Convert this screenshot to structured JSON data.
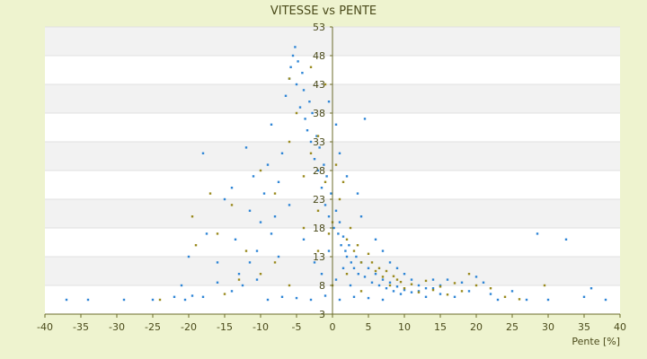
{
  "chart_data": {
    "type": "scatter",
    "title": "VITESSE vs PENTE",
    "xlabel": "Pente [%]",
    "ylabel": "",
    "xlim": [
      -40,
      40
    ],
    "ylim": [
      3,
      53
    ],
    "x_ticks": [
      -40,
      -35,
      -30,
      -25,
      -20,
      -15,
      -10,
      -5,
      0,
      5,
      10,
      15,
      20,
      25,
      30,
      35,
      40
    ],
    "y_ticks": [
      3,
      8,
      13,
      18,
      23,
      28,
      33,
      38,
      43,
      48,
      53
    ],
    "grid": true,
    "legend": "none",
    "colors": {
      "background": "#eef3cf",
      "plot_band_light": "#ffffff",
      "plot_band_dark": "#f2f2f2",
      "axis": "#6b6b2a",
      "series_blue": "#2f86d6",
      "series_olive": "#9a8a1e"
    },
    "series": [
      {
        "color": "#2f86d6",
        "points": [
          [
            -37,
            5.5
          ],
          [
            -34,
            5.5
          ],
          [
            -29,
            5.5
          ],
          [
            -25,
            5.5
          ],
          [
            -22,
            6
          ],
          [
            -20.5,
            5.5
          ],
          [
            -19.5,
            6.2
          ],
          [
            -18,
            31
          ],
          [
            -17.5,
            17
          ],
          [
            -16,
            12
          ],
          [
            -15,
            23
          ],
          [
            -14,
            25
          ],
          [
            -13.5,
            16
          ],
          [
            -13,
            10
          ],
          [
            -12.5,
            8
          ],
          [
            -12,
            32
          ],
          [
            -11.5,
            21
          ],
          [
            -11,
            27
          ],
          [
            -10.5,
            14
          ],
          [
            -10,
            19
          ],
          [
            -9.5,
            24
          ],
          [
            -9,
            29
          ],
          [
            -8.5,
            36
          ],
          [
            -8,
            20
          ],
          [
            -7.5,
            26
          ],
          [
            -7,
            31
          ],
          [
            -6.5,
            41
          ],
          [
            -6,
            44
          ],
          [
            -5.8,
            46
          ],
          [
            -5.5,
            48
          ],
          [
            -5.2,
            49.5
          ],
          [
            -5,
            43
          ],
          [
            -4.8,
            47
          ],
          [
            -4.5,
            39
          ],
          [
            -4.2,
            45
          ],
          [
            -4,
            42
          ],
          [
            -3.8,
            37
          ],
          [
            -3.5,
            35
          ],
          [
            -3.2,
            40
          ],
          [
            -3,
            33
          ],
          [
            -2.8,
            38
          ],
          [
            -2.5,
            30
          ],
          [
            -2.2,
            34
          ],
          [
            -2,
            28
          ],
          [
            -1.8,
            32
          ],
          [
            -1.5,
            25
          ],
          [
            -1.2,
            29
          ],
          [
            -1,
            22
          ],
          [
            -0.8,
            27
          ],
          [
            -0.5,
            20
          ],
          [
            -0.2,
            24
          ],
          [
            0.2,
            18
          ],
          [
            0.5,
            21
          ],
          [
            0.8,
            17
          ],
          [
            1,
            19
          ],
          [
            1.2,
            15
          ],
          [
            1.5,
            16.5
          ],
          [
            1.8,
            14
          ],
          [
            2,
            13
          ],
          [
            2.3,
            15
          ],
          [
            2.6,
            12
          ],
          [
            3,
            11
          ],
          [
            3.3,
            13
          ],
          [
            3.6,
            10
          ],
          [
            4,
            12
          ],
          [
            4.5,
            9.5
          ],
          [
            5,
            11
          ],
          [
            5.5,
            8.5
          ],
          [
            6,
            10
          ],
          [
            6.5,
            8
          ],
          [
            7,
            9
          ],
          [
            7.5,
            7.5
          ],
          [
            8,
            8.5
          ],
          [
            8.5,
            7
          ],
          [
            9,
            7.8
          ],
          [
            9.5,
            6.5
          ],
          [
            10,
            7.2
          ],
          [
            11,
            6.8
          ],
          [
            12,
            7
          ],
          [
            13,
            6
          ],
          [
            14,
            7.5
          ],
          [
            15,
            6.5
          ],
          [
            16,
            9
          ],
          [
            17,
            6
          ],
          [
            18,
            8.5
          ],
          [
            19,
            7
          ],
          [
            20,
            9.5
          ],
          [
            21,
            8.5
          ],
          [
            22,
            6.5
          ],
          [
            23,
            5.5
          ],
          [
            25,
            7
          ],
          [
            27,
            5.5
          ],
          [
            28.5,
            17
          ],
          [
            30,
            5.5
          ],
          [
            32.5,
            16
          ],
          [
            35,
            6
          ],
          [
            36,
            7.5
          ],
          [
            38,
            5.5
          ],
          [
            -9,
            5.5
          ],
          [
            -7,
            6
          ],
          [
            -5,
            5.8
          ],
          [
            -3,
            5.5
          ],
          [
            -1,
            6.2
          ],
          [
            1,
            5.5
          ],
          [
            3,
            6
          ],
          [
            5,
            5.8
          ],
          [
            7,
            5.5
          ],
          [
            -2.5,
            12
          ],
          [
            -1.5,
            10
          ],
          [
            -0.5,
            14
          ],
          [
            0.5,
            9
          ],
          [
            1.5,
            11
          ],
          [
            2.5,
            8
          ],
          [
            -4,
            16
          ],
          [
            -6,
            22
          ],
          [
            -7.5,
            13
          ],
          [
            -8.5,
            17
          ],
          [
            -10.5,
            9
          ],
          [
            -11.5,
            12
          ],
          [
            4,
            20
          ],
          [
            3.5,
            24
          ],
          [
            2,
            27
          ],
          [
            1,
            31
          ],
          [
            0.5,
            36
          ],
          [
            -0.5,
            40
          ],
          [
            4.5,
            37
          ],
          [
            6,
            16
          ],
          [
            7,
            14
          ],
          [
            8,
            12
          ],
          [
            9,
            11
          ],
          [
            10,
            10
          ],
          [
            11,
            9
          ],
          [
            12,
            8
          ],
          [
            13,
            7.5
          ],
          [
            14,
            9
          ],
          [
            15,
            8
          ],
          [
            -14,
            7
          ],
          [
            -16,
            8.5
          ],
          [
            -18,
            6
          ],
          [
            -20,
            13
          ],
          [
            -21,
            8
          ]
        ]
      },
      {
        "color": "#9a8a1e",
        "points": [
          [
            -19,
            15
          ],
          [
            -19.5,
            20
          ],
          [
            -16,
            17
          ],
          [
            -14,
            22
          ],
          [
            -12,
            14
          ],
          [
            -10,
            28
          ],
          [
            -8,
            24
          ],
          [
            -6,
            33
          ],
          [
            -5,
            38
          ],
          [
            -4,
            27
          ],
          [
            -3,
            31
          ],
          [
            -2,
            21
          ],
          [
            -1,
            26
          ],
          [
            0,
            19
          ],
          [
            1,
            23
          ],
          [
            2,
            16
          ],
          [
            3,
            14
          ],
          [
            4,
            12
          ],
          [
            5,
            13.5
          ],
          [
            6,
            10.5
          ],
          [
            7,
            9.5
          ],
          [
            8,
            8
          ],
          [
            9,
            9
          ],
          [
            10,
            7.5
          ],
          [
            11,
            8.2
          ],
          [
            12,
            6.8
          ],
          [
            13,
            8.8
          ],
          [
            14,
            7.2
          ],
          [
            15,
            7.8
          ],
          [
            16,
            6.4
          ],
          [
            17,
            8.4
          ],
          [
            18,
            7
          ],
          [
            19,
            10
          ],
          [
            20,
            8
          ],
          [
            22,
            7.5
          ],
          [
            24,
            6
          ],
          [
            26,
            5.6
          ],
          [
            29.5,
            8
          ],
          [
            -10,
            10
          ],
          [
            -8,
            12
          ],
          [
            -6,
            8
          ],
          [
            -4,
            18
          ],
          [
            -2,
            14
          ],
          [
            0,
            8
          ],
          [
            2,
            10
          ],
          [
            4,
            7
          ],
          [
            -13,
            9
          ],
          [
            -15,
            6.5
          ],
          [
            -24,
            5.5
          ],
          [
            -17,
            24
          ],
          [
            -1,
            43
          ],
          [
            -3,
            46
          ],
          [
            -2,
            34
          ],
          [
            0.5,
            29
          ],
          [
            1.5,
            26
          ],
          [
            -6,
            44
          ],
          [
            -0.5,
            17
          ],
          [
            2.5,
            18
          ],
          [
            3.5,
            15
          ],
          [
            5.5,
            12
          ],
          [
            6.5,
            11
          ],
          [
            7.5,
            10.5
          ],
          [
            8.5,
            9.6
          ],
          [
            9.5,
            8.6
          ]
        ]
      }
    ]
  }
}
